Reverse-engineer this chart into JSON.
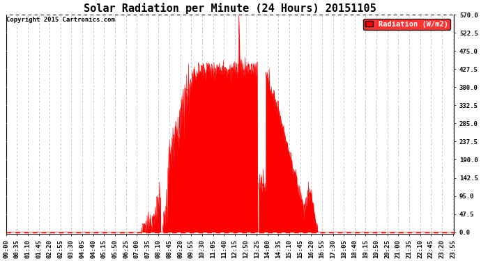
{
  "title": "Solar Radiation per Minute (24 Hours) 20151105",
  "copyright_text": "Copyright 2015 Cartronics.com",
  "legend_label": "Radiation (W/m2)",
  "y_ticks": [
    0.0,
    47.5,
    95.0,
    142.5,
    190.0,
    237.5,
    285.0,
    332.5,
    380.0,
    427.5,
    475.0,
    522.5,
    570.0
  ],
  "ylim": [
    -5,
    570
  ],
  "total_minutes": 1440,
  "background_color": "#ffffff",
  "fill_color": "#ff0000",
  "line_color": "#ff0000",
  "grid_color": "#aaaaaa",
  "dashed_zero_color": "#ff0000",
  "title_fontsize": 11,
  "tick_fontsize": 6.5,
  "legend_fontsize": 7.5,
  "sunrise_min": 435,
  "sunset_min": 1005,
  "peak_min": 755,
  "spike_min": 748,
  "spike_val": 570
}
